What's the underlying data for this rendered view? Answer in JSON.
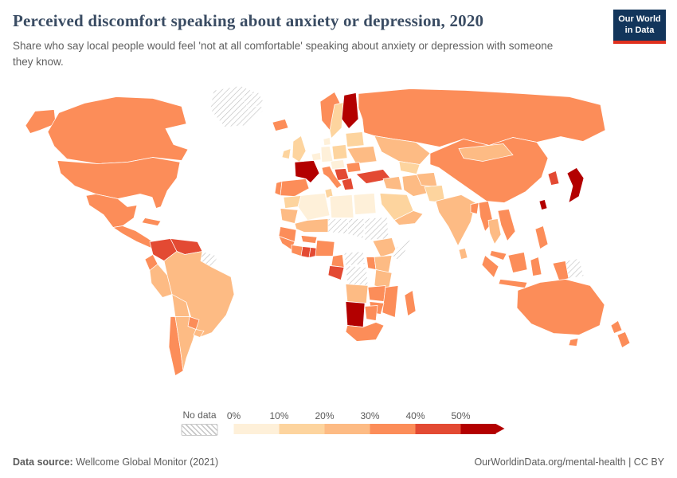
{
  "header": {
    "title": "Perceived discomfort speaking about anxiety or depression, 2020",
    "subtitle": "Share who say local people would feel 'not at all comfortable' speaking about anxiety or depression with someone they know.",
    "logo": {
      "line1": "Our World",
      "line2": "in Data"
    }
  },
  "legend": {
    "no_data_label": "No data",
    "tick_labels": [
      "0%",
      "10%",
      "20%",
      "30%",
      "40%",
      "50%"
    ]
  },
  "footer": {
    "source_label": "Data source:",
    "source_text": " Wellcome Global Monitor (2021)",
    "link_text": "OurWorldinData.org/mental-health",
    "license_text": " | CC BY"
  },
  "colors": {
    "logo_background": "#12355b",
    "logo_accent": "#e0301e",
    "title_color": "#3a4c63"
  },
  "chart_data": {
    "type": "choropleth_map",
    "title": "Perceived discomfort speaking about anxiety or depression, 2020",
    "metric": "Share who say local people would feel 'not at all comfortable' speaking about anxiety or depression with someone they know",
    "unit": "%",
    "year": 2020,
    "color_scale": {
      "bins": [
        0,
        10,
        20,
        30,
        40,
        50
      ],
      "colors": [
        "#fef0d9",
        "#fdd49e",
        "#fdbb84",
        "#fc8d59",
        "#e34a33",
        "#b30000"
      ],
      "no_data_style": "hatched"
    },
    "countries": {
      "canada": 32,
      "united-states": 32,
      "mexico": 34,
      "guatemala-honduras": 35,
      "cuba": 30,
      "colombia": 42,
      "venezuela": 46,
      "ecuador": 34,
      "peru": 24,
      "brazil": 24,
      "bolivia": 26,
      "paraguay": 32,
      "chile": 34,
      "argentina": 26,
      "uruguay": 28,
      "iceland": 34,
      "united-kingdom": 14,
      "ireland": 14,
      "portugal": 36,
      "spain": 36,
      "france": 54,
      "belgium-netherlands": 5,
      "germany": 6,
      "denmark": 4,
      "norway": 36,
      "sweden": 14,
      "finland": 56,
      "baltics-belarus": 18,
      "poland": 12,
      "czech-austria": 8,
      "ukraine": 24,
      "romania": 38,
      "serbia-balkans": 42,
      "italy": 36,
      "greece": 46,
      "russia": 32,
      "kazakhstan": 22,
      "uzbekistan-turkmenistan": 18,
      "turkey": 46,
      "syria-iraq": 26,
      "iran": 26,
      "saudi-arabia": 16,
      "yemen-oman": 22,
      "afghanistan": 20,
      "pakistan": 14,
      "india": 22,
      "bangladesh": 30,
      "myanmar": 32,
      "thailand": 28,
      "vietnam-laos": 36,
      "china": 32,
      "mongolia": 26,
      "south-korea": 40,
      "japan": 50,
      "taiwan": 50,
      "philippines": 33,
      "sri-lanka": 25,
      "malaysia": 30,
      "indonesia": 30,
      "australia": 32,
      "new-zealand": 36,
      "morocco": 12,
      "mauritania": 20,
      "algeria": 6,
      "tunisia": 18,
      "libya": 5,
      "egypt": 3,
      "mali": 28,
      "senegal-guinea": 34,
      "sierra-leone-liberia": 38,
      "ivory-coast": 36,
      "ghana": 46,
      "togo-benin": 44,
      "burkina-faso": 30,
      "nigeria": 32,
      "cameroon": 36,
      "gabon-congo": 44,
      "ethiopia": 24,
      "kenya": 26,
      "uganda": 34,
      "tanzania": 26,
      "angola": 28,
      "zambia": 36,
      "mozambique": 32,
      "zimbabwe": 34,
      "namibia": 56,
      "botswana": 30,
      "south-africa": 33,
      "madagascar": 30
    },
    "no_data": [
      "Greenland",
      "Svalbard",
      "Guyana and Suriname",
      "Niger",
      "Chad",
      "Sudan",
      "Central African Republic",
      "DR Congo",
      "Somalia",
      "Papua New Guinea"
    ]
  }
}
